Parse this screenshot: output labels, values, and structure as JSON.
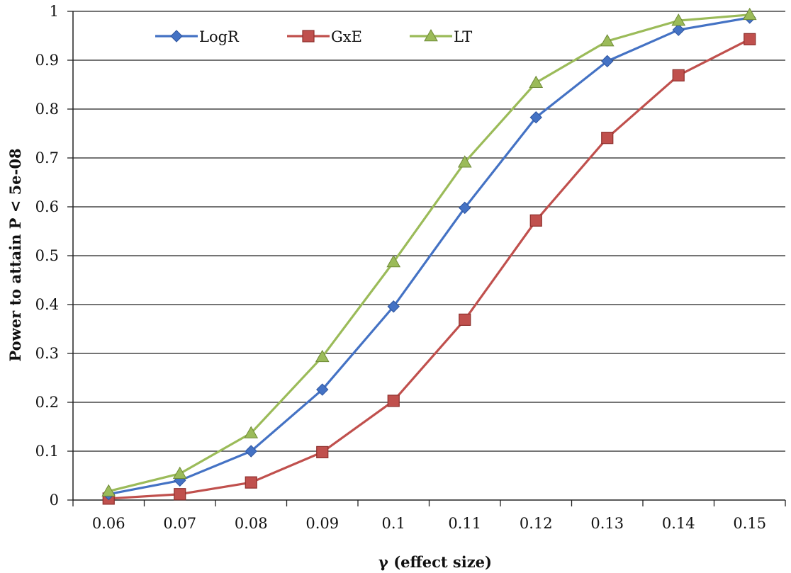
{
  "chart_data": {
    "type": "line",
    "title": "",
    "xlabel": "γ (effect size)",
    "ylabel": "Power to attain P < 5e-08",
    "x": [
      0.06,
      0.07,
      0.08,
      0.09,
      0.1,
      0.11,
      0.12,
      0.13,
      0.14,
      0.15
    ],
    "x_tick_labels": [
      "0.06",
      "0.07",
      "0.08",
      "0.09",
      "0.1",
      "0.11",
      "0.12",
      "0.13",
      "0.14",
      "0.15"
    ],
    "ylim": [
      0,
      1
    ],
    "y_ticks": [
      0,
      0.1,
      0.2,
      0.3,
      0.4,
      0.5,
      0.6,
      0.7,
      0.8,
      0.9,
      1
    ],
    "y_tick_labels": [
      "0",
      "0.1",
      "0.2",
      "0.3",
      "0.4",
      "0.5",
      "0.6",
      "0.7",
      "0.8",
      "0.9",
      "1"
    ],
    "grid": "horizontal",
    "legend_position": "top-left",
    "series": [
      {
        "name": "LogR",
        "color": "#4472C4",
        "marker": "diamond",
        "values": [
          0.012,
          0.04,
          0.1,
          0.226,
          0.396,
          0.598,
          0.783,
          0.898,
          0.962,
          0.987
        ]
      },
      {
        "name": "GxE",
        "color": "#C0504D",
        "marker": "square",
        "values": [
          0.003,
          0.012,
          0.036,
          0.098,
          0.203,
          0.369,
          0.572,
          0.741,
          0.869,
          0.943
        ]
      },
      {
        "name": "LT",
        "color": "#9BBB59",
        "marker": "triangle",
        "values": [
          0.018,
          0.054,
          0.137,
          0.293,
          0.487,
          0.691,
          0.854,
          0.939,
          0.981,
          0.993
        ]
      }
    ]
  }
}
